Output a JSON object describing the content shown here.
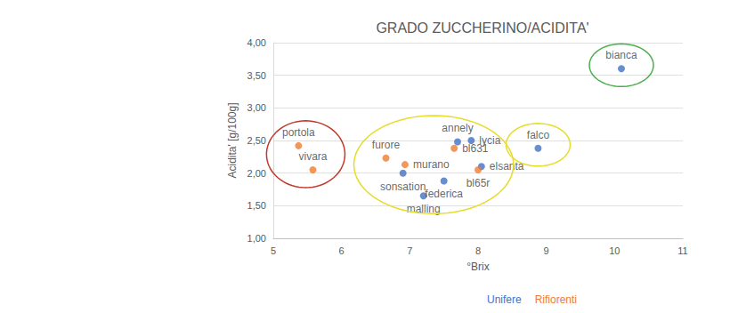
{
  "chart_data": {
    "type": "scatter",
    "title": "GRADO ZUCCHERINO/ACIDITA'",
    "x_label": "°Brix",
    "y_label": "Acidita' [g/100g]",
    "xlim": [
      5,
      11
    ],
    "xticks": [
      5,
      6,
      7,
      8,
      9,
      10,
      11
    ],
    "ylim": [
      1,
      4
    ],
    "yticks": [
      {
        "value": 1,
        "label": "1,00"
      },
      {
        "value": 1.5,
        "label": "1,50"
      },
      {
        "value": 2,
        "label": "2,00"
      },
      {
        "value": 2.5,
        "label": "2,50"
      },
      {
        "value": 3,
        "label": "3,00"
      },
      {
        "value": 3.5,
        "label": "3,50"
      },
      {
        "value": 4,
        "label": "4,00"
      }
    ],
    "grid": true,
    "legend": "bottom",
    "marker": "circle",
    "series": [
      {
        "name": "Unifere",
        "color": "#4472c4",
        "labels": [
          "sonsation",
          "malling",
          "federica",
          "annely",
          "lycia",
          "elsanta",
          "falco",
          "bianca"
        ],
        "x": [
          6.9,
          7.2,
          7.5,
          7.7,
          7.9,
          8.05,
          8.88,
          10.1
        ],
        "values": [
          2.0,
          1.65,
          1.88,
          2.48,
          2.5,
          2.1,
          2.38,
          3.6
        ]
      },
      {
        "name": "Rifiorenti",
        "color": "#ed7d31",
        "labels": [
          "portola",
          "vivara",
          "furore",
          "murano",
          "bl631",
          "bl65r"
        ],
        "x": [
          5.37,
          5.58,
          6.65,
          6.93,
          7.65,
          8.0
        ],
        "values": [
          2.42,
          2.05,
          2.23,
          2.13,
          2.38,
          2.05
        ]
      }
    ],
    "highlights": [
      {
        "color": "#c0392b",
        "labels": [
          "portola",
          "vivara"
        ]
      },
      {
        "color": "#e6dc2a",
        "labels": [
          "furore",
          "murano",
          "sonsation",
          "malling",
          "federica",
          "annely",
          "lycia",
          "bl631",
          "elsanta",
          "bl65r"
        ]
      },
      {
        "color": "#e6dc2a",
        "labels": [
          "falco"
        ]
      },
      {
        "color": "#4caf50",
        "labels": [
          "bianca"
        ]
      }
    ]
  }
}
